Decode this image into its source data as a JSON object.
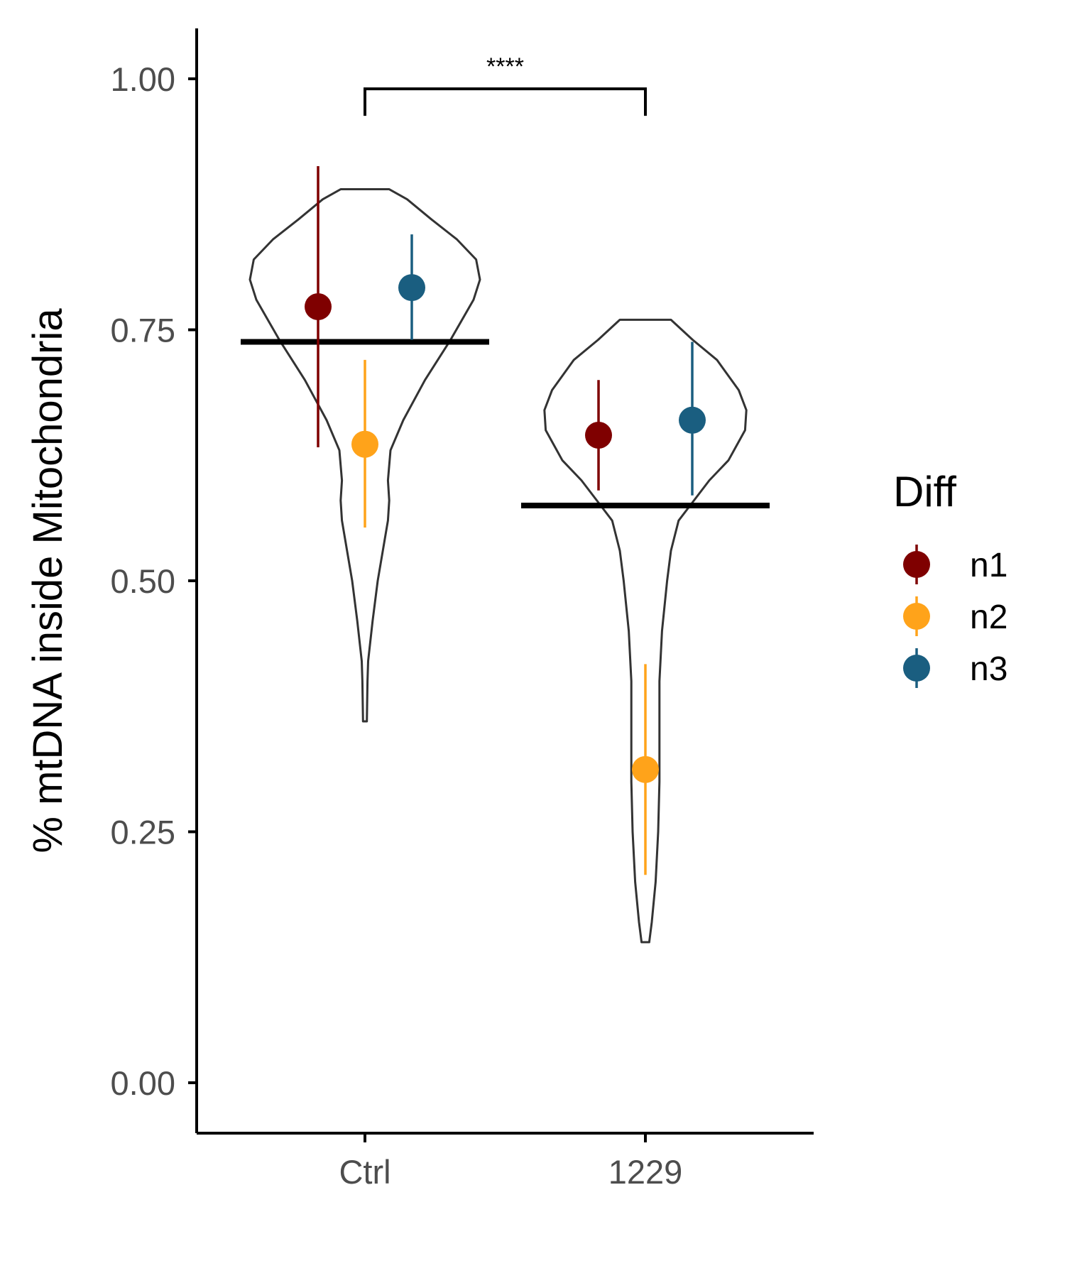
{
  "chart_data": {
    "type": "violin",
    "title": "",
    "xlabel": "",
    "ylabel": "% mtDNA inside Mitochondria",
    "categories": [
      "Ctrl",
      "1229"
    ],
    "ylim": [
      -0.05,
      1.05
    ],
    "yticks": [
      0.0,
      0.25,
      0.5,
      0.75,
      1.0
    ],
    "ytick_labels": [
      "0.00",
      "0.25",
      "0.50",
      "0.75",
      "1.00"
    ],
    "grid": false,
    "legend": {
      "title": "Diff",
      "position": "right"
    },
    "medians": [
      0.738,
      0.575
    ],
    "violins": [
      {
        "category": "Ctrl",
        "profile": [
          [
            0.36,
            0.015
          ],
          [
            0.4,
            0.02
          ],
          [
            0.42,
            0.025
          ],
          [
            0.46,
            0.06
          ],
          [
            0.5,
            0.1
          ],
          [
            0.53,
            0.14
          ],
          [
            0.56,
            0.18
          ],
          [
            0.58,
            0.19
          ],
          [
            0.6,
            0.18
          ],
          [
            0.63,
            0.2
          ],
          [
            0.66,
            0.3
          ],
          [
            0.7,
            0.47
          ],
          [
            0.74,
            0.67
          ],
          [
            0.78,
            0.85
          ],
          [
            0.8,
            0.9
          ],
          [
            0.82,
            0.87
          ],
          [
            0.84,
            0.72
          ],
          [
            0.86,
            0.52
          ],
          [
            0.88,
            0.33
          ],
          [
            0.89,
            0.19
          ]
        ]
      },
      {
        "category": "1229",
        "profile": [
          [
            0.14,
            0.03
          ],
          [
            0.16,
            0.05
          ],
          [
            0.2,
            0.08
          ],
          [
            0.25,
            0.1
          ],
          [
            0.3,
            0.11
          ],
          [
            0.35,
            0.11
          ],
          [
            0.4,
            0.11
          ],
          [
            0.45,
            0.13
          ],
          [
            0.5,
            0.17
          ],
          [
            0.53,
            0.2
          ],
          [
            0.56,
            0.26
          ],
          [
            0.58,
            0.38
          ],
          [
            0.6,
            0.5
          ],
          [
            0.62,
            0.65
          ],
          [
            0.65,
            0.78
          ],
          [
            0.67,
            0.79
          ],
          [
            0.69,
            0.73
          ],
          [
            0.72,
            0.56
          ],
          [
            0.74,
            0.37
          ],
          [
            0.76,
            0.2
          ]
        ]
      }
    ],
    "series": [
      {
        "name": "n1",
        "color": "#7f0000",
        "points": [
          {
            "category": "Ctrl",
            "mean": 0.773,
            "low": 0.633,
            "high": 0.913
          },
          {
            "category": "1229",
            "mean": 0.645,
            "low": 0.59,
            "high": 0.7
          }
        ]
      },
      {
        "name": "n2",
        "color": "#ffa31a",
        "points": [
          {
            "category": "Ctrl",
            "mean": 0.636,
            "low": 0.553,
            "high": 0.72
          },
          {
            "category": "1229",
            "mean": 0.312,
            "low": 0.207,
            "high": 0.417
          }
        ]
      },
      {
        "name": "n3",
        "color": "#1a5e80",
        "points": [
          {
            "category": "Ctrl",
            "mean": 0.792,
            "low": 0.74,
            "high": 0.845
          },
          {
            "category": "1229",
            "mean": 0.66,
            "low": 0.585,
            "high": 0.738
          }
        ]
      }
    ],
    "significance": {
      "label": "****",
      "from": "Ctrl",
      "to": "1229",
      "y": 0.99
    }
  }
}
